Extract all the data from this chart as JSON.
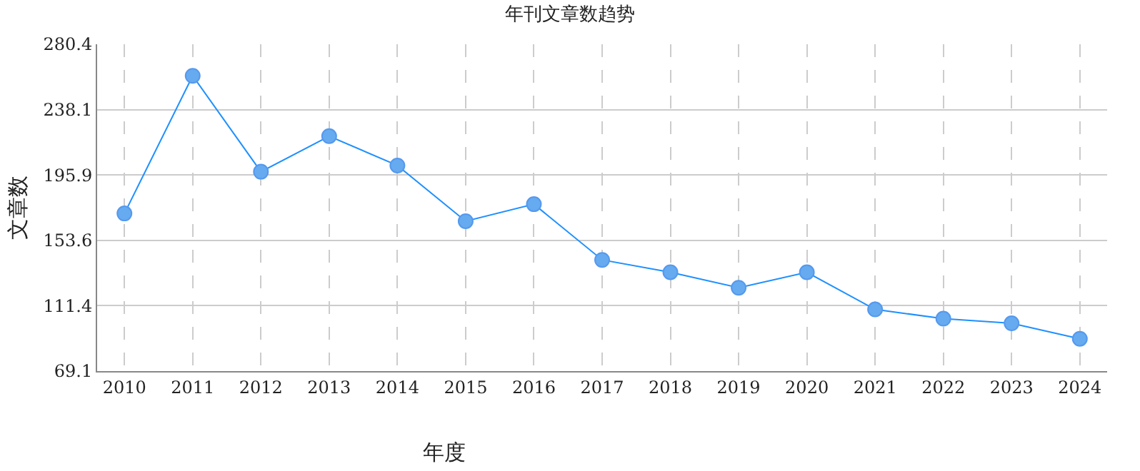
{
  "chart_data": {
    "type": "line",
    "title": "年刊文章数趋势",
    "xlabel": "年度",
    "ylabel": "文章数",
    "categories": [
      "2010",
      "2011",
      "2012",
      "2013",
      "2014",
      "2015",
      "2016",
      "2017",
      "2018",
      "2019",
      "2020",
      "2021",
      "2022",
      "2023",
      "2024"
    ],
    "series": [
      {
        "color": "#1e90ff",
        "values": [
          171,
          260,
          198,
          221,
          202,
          166,
          177,
          141,
          133,
          123,
          133,
          109,
          103,
          100,
          90
        ]
      }
    ],
    "ylim": [
      69.1,
      280.4
    ],
    "yticks": [
      69.1,
      111.4,
      153.6,
      195.9,
      238.1,
      280.4
    ],
    "grid": true,
    "marker": "circle",
    "line_style": "solid"
  }
}
